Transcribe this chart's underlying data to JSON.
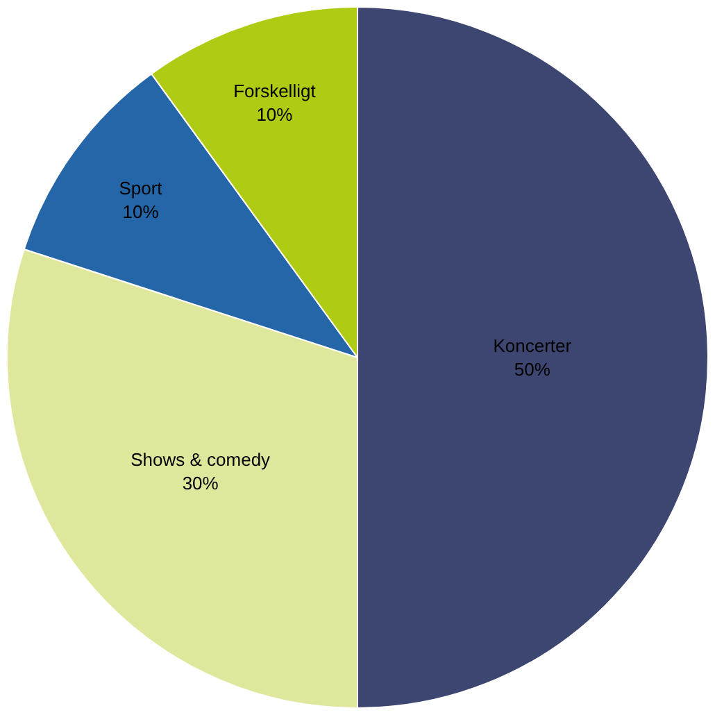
{
  "chart_data": {
    "type": "pie",
    "categories": [
      "Koncerter",
      "Shows & comedy",
      "Sport",
      "Forskelligt"
    ],
    "values": [
      50,
      30,
      10,
      10
    ],
    "colors": [
      "#3c4670",
      "#dfe79c",
      "#2566a8",
      "#afcb13"
    ],
    "value_labels": [
      "50%",
      "30%",
      "10%",
      "10%"
    ],
    "legend": false
  }
}
